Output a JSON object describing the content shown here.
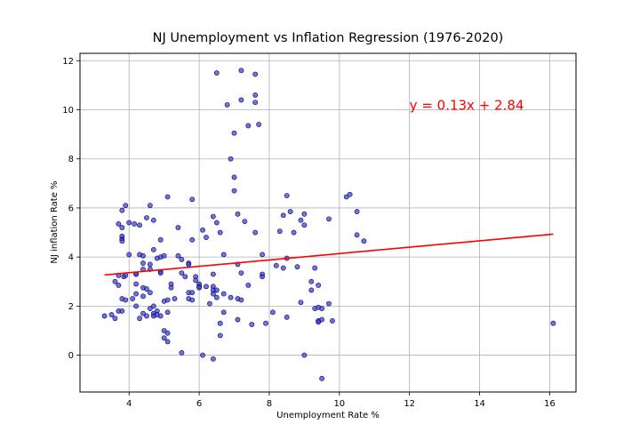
{
  "chart_data": {
    "type": "scatter",
    "title": "NJ Unemployment vs Inflation Regression (1976-2020)",
    "xlabel": "Unemployment Rate %",
    "ylabel": "NJ inflation Rate %",
    "xlim": [
      2.6,
      16.75
    ],
    "ylim": [
      -1.5,
      12.3
    ],
    "xticks": [
      4,
      6,
      8,
      10,
      12,
      14,
      16
    ],
    "yticks": [
      0,
      2,
      4,
      6,
      8,
      10,
      12
    ],
    "grid": true,
    "point_color": "#3f3fbf",
    "point_edge_color": "#00008b",
    "line_color": "#ff0000",
    "regression": {
      "equation": "y = 0.13x + 2.84",
      "slope": 0.13,
      "intercept": 2.84,
      "x_range": [
        3.3,
        16.1
      ]
    },
    "annotation": {
      "text": "y = 0.13x + 2.84",
      "x": 12.0,
      "y": 10.0,
      "color": "#ff0000"
    },
    "points": [
      {
        "x": 3.3,
        "y": 1.6
      },
      {
        "x": 3.5,
        "y": 1.65
      },
      {
        "x": 3.6,
        "y": 1.5
      },
      {
        "x": 3.6,
        "y": 3.0
      },
      {
        "x": 3.7,
        "y": 2.85
      },
      {
        "x": 3.7,
        "y": 3.25
      },
      {
        "x": 3.7,
        "y": 5.35
      },
      {
        "x": 3.7,
        "y": 1.8
      },
      {
        "x": 3.8,
        "y": 5.9
      },
      {
        "x": 3.8,
        "y": 4.75
      },
      {
        "x": 3.8,
        "y": 4.65
      },
      {
        "x": 3.8,
        "y": 4.85
      },
      {
        "x": 3.8,
        "y": 5.2
      },
      {
        "x": 3.8,
        "y": 2.3
      },
      {
        "x": 3.8,
        "y": 1.8
      },
      {
        "x": 3.85,
        "y": 3.2
      },
      {
        "x": 3.9,
        "y": 6.1
      },
      {
        "x": 3.9,
        "y": 3.25
      },
      {
        "x": 3.9,
        "y": 2.25
      },
      {
        "x": 4.0,
        "y": 4.1
      },
      {
        "x": 4.0,
        "y": 5.4
      },
      {
        "x": 4.1,
        "y": 2.3
      },
      {
        "x": 4.15,
        "y": 5.35
      },
      {
        "x": 4.2,
        "y": 3.3
      },
      {
        "x": 4.2,
        "y": 2.9
      },
      {
        "x": 4.2,
        "y": 2.5
      },
      {
        "x": 4.2,
        "y": 2.0
      },
      {
        "x": 4.2,
        "y": 3.3
      },
      {
        "x": 4.3,
        "y": 5.3
      },
      {
        "x": 4.3,
        "y": 4.1
      },
      {
        "x": 4.3,
        "y": 1.5
      },
      {
        "x": 4.4,
        "y": 4.05
      },
      {
        "x": 4.4,
        "y": 3.75
      },
      {
        "x": 4.4,
        "y": 3.5
      },
      {
        "x": 4.4,
        "y": 2.75
      },
      {
        "x": 4.4,
        "y": 2.4
      },
      {
        "x": 4.4,
        "y": 1.7
      },
      {
        "x": 4.5,
        "y": 5.6
      },
      {
        "x": 4.5,
        "y": 2.7
      },
      {
        "x": 4.5,
        "y": 1.6
      },
      {
        "x": 4.6,
        "y": 6.1
      },
      {
        "x": 4.6,
        "y": 3.7
      },
      {
        "x": 4.6,
        "y": 3.5
      },
      {
        "x": 4.6,
        "y": 2.55
      },
      {
        "x": 4.6,
        "y": 1.9
      },
      {
        "x": 4.7,
        "y": 5.5
      },
      {
        "x": 4.7,
        "y": 4.3
      },
      {
        "x": 4.7,
        "y": 2.0
      },
      {
        "x": 4.7,
        "y": 1.7
      },
      {
        "x": 4.7,
        "y": 1.6
      },
      {
        "x": 4.8,
        "y": 3.95
      },
      {
        "x": 4.8,
        "y": 1.8
      },
      {
        "x": 4.8,
        "y": 1.65
      },
      {
        "x": 4.9,
        "y": 4.7
      },
      {
        "x": 4.9,
        "y": 4.0
      },
      {
        "x": 4.9,
        "y": 3.4
      },
      {
        "x": 4.9,
        "y": 3.35
      },
      {
        "x": 4.9,
        "y": 1.6
      },
      {
        "x": 5.0,
        "y": 4.05
      },
      {
        "x": 5.0,
        "y": 2.2
      },
      {
        "x": 5.0,
        "y": 1.0
      },
      {
        "x": 5.0,
        "y": 0.7
      },
      {
        "x": 5.1,
        "y": 6.45
      },
      {
        "x": 5.1,
        "y": 2.25
      },
      {
        "x": 5.1,
        "y": 1.75
      },
      {
        "x": 5.1,
        "y": 0.9
      },
      {
        "x": 5.1,
        "y": 0.55
      },
      {
        "x": 5.2,
        "y": 2.9
      },
      {
        "x": 5.2,
        "y": 2.75
      },
      {
        "x": 5.3,
        "y": 2.3
      },
      {
        "x": 5.4,
        "y": 5.2
      },
      {
        "x": 5.4,
        "y": 4.05
      },
      {
        "x": 5.5,
        "y": 3.9
      },
      {
        "x": 5.5,
        "y": 3.35
      },
      {
        "x": 5.5,
        "y": 0.1
      },
      {
        "x": 5.6,
        "y": 3.2
      },
      {
        "x": 5.7,
        "y": 3.75
      },
      {
        "x": 5.7,
        "y": 3.7
      },
      {
        "x": 5.7,
        "y": 2.55
      },
      {
        "x": 5.7,
        "y": 2.3
      },
      {
        "x": 5.8,
        "y": 6.35
      },
      {
        "x": 5.8,
        "y": 4.7
      },
      {
        "x": 5.8,
        "y": 2.55
      },
      {
        "x": 5.8,
        "y": 2.25
      },
      {
        "x": 5.9,
        "y": 3.2
      },
      {
        "x": 5.9,
        "y": 3.05
      },
      {
        "x": 6.0,
        "y": 2.9
      },
      {
        "x": 6.0,
        "y": 2.8
      },
      {
        "x": 6.0,
        "y": 2.75
      },
      {
        "x": 6.1,
        "y": 5.1
      },
      {
        "x": 6.1,
        "y": 0.0
      },
      {
        "x": 6.2,
        "y": 4.8
      },
      {
        "x": 6.2,
        "y": 2.8
      },
      {
        "x": 6.3,
        "y": 2.1
      },
      {
        "x": 6.4,
        "y": 5.65
      },
      {
        "x": 6.4,
        "y": 3.3
      },
      {
        "x": 6.4,
        "y": 2.8
      },
      {
        "x": 6.4,
        "y": 2.65
      },
      {
        "x": 6.4,
        "y": 2.5
      },
      {
        "x": 6.4,
        "y": -0.15
      },
      {
        "x": 6.5,
        "y": 11.5
      },
      {
        "x": 6.5,
        "y": 5.4
      },
      {
        "x": 6.5,
        "y": 2.65
      },
      {
        "x": 6.5,
        "y": 2.35
      },
      {
        "x": 6.6,
        "y": 5.0
      },
      {
        "x": 6.6,
        "y": 1.3
      },
      {
        "x": 6.6,
        "y": 0.8
      },
      {
        "x": 6.7,
        "y": 4.1
      },
      {
        "x": 6.7,
        "y": 2.5
      },
      {
        "x": 6.7,
        "y": 1.75
      },
      {
        "x": 6.8,
        "y": 10.2
      },
      {
        "x": 6.9,
        "y": 8.0
      },
      {
        "x": 6.9,
        "y": 2.35
      },
      {
        "x": 7.0,
        "y": 9.05
      },
      {
        "x": 7.0,
        "y": 7.25
      },
      {
        "x": 7.0,
        "y": 6.7
      },
      {
        "x": 7.1,
        "y": 5.75
      },
      {
        "x": 7.1,
        "y": 3.7
      },
      {
        "x": 7.1,
        "y": 2.3
      },
      {
        "x": 7.1,
        "y": 1.45
      },
      {
        "x": 7.2,
        "y": 11.6
      },
      {
        "x": 7.2,
        "y": 10.4
      },
      {
        "x": 7.2,
        "y": 3.35
      },
      {
        "x": 7.2,
        "y": 2.25
      },
      {
        "x": 7.3,
        "y": 5.45
      },
      {
        "x": 7.4,
        "y": 9.35
      },
      {
        "x": 7.4,
        "y": 2.85
      },
      {
        "x": 7.5,
        "y": 1.25
      },
      {
        "x": 7.6,
        "y": 11.45
      },
      {
        "x": 7.6,
        "y": 10.6
      },
      {
        "x": 7.6,
        "y": 10.3
      },
      {
        "x": 7.6,
        "y": 5.0
      },
      {
        "x": 7.7,
        "y": 9.4
      },
      {
        "x": 7.8,
        "y": 4.1
      },
      {
        "x": 7.8,
        "y": 3.3
      },
      {
        "x": 7.8,
        "y": 3.2
      },
      {
        "x": 7.9,
        "y": 1.3
      },
      {
        "x": 8.1,
        "y": 1.75
      },
      {
        "x": 8.2,
        "y": 3.65
      },
      {
        "x": 8.3,
        "y": 5.05
      },
      {
        "x": 8.4,
        "y": 5.7
      },
      {
        "x": 8.4,
        "y": 3.55
      },
      {
        "x": 8.5,
        "y": 6.5
      },
      {
        "x": 8.5,
        "y": 3.95
      },
      {
        "x": 8.5,
        "y": 1.55
      },
      {
        "x": 8.6,
        "y": 5.85
      },
      {
        "x": 8.7,
        "y": 5.0
      },
      {
        "x": 8.8,
        "y": 3.6
      },
      {
        "x": 8.9,
        "y": 5.5
      },
      {
        "x": 8.9,
        "y": 2.15
      },
      {
        "x": 9.0,
        "y": 5.75
      },
      {
        "x": 9.0,
        "y": 5.3
      },
      {
        "x": 9.0,
        "y": 0.0
      },
      {
        "x": 9.2,
        "y": 3.0
      },
      {
        "x": 9.2,
        "y": 2.65
      },
      {
        "x": 9.3,
        "y": 3.55
      },
      {
        "x": 9.3,
        "y": 1.9
      },
      {
        "x": 9.4,
        "y": 2.85
      },
      {
        "x": 9.4,
        "y": 1.95
      },
      {
        "x": 9.4,
        "y": 1.4
      },
      {
        "x": 9.4,
        "y": 1.35
      },
      {
        "x": 9.5,
        "y": 1.9
      },
      {
        "x": 9.5,
        "y": 1.45
      },
      {
        "x": 9.5,
        "y": -0.95
      },
      {
        "x": 9.7,
        "y": 5.55
      },
      {
        "x": 9.7,
        "y": 2.1
      },
      {
        "x": 9.8,
        "y": 1.4
      },
      {
        "x": 10.2,
        "y": 6.45
      },
      {
        "x": 10.3,
        "y": 6.55
      },
      {
        "x": 10.5,
        "y": 5.85
      },
      {
        "x": 10.5,
        "y": 4.9
      },
      {
        "x": 10.7,
        "y": 4.65
      },
      {
        "x": 16.1,
        "y": 1.3
      }
    ]
  }
}
